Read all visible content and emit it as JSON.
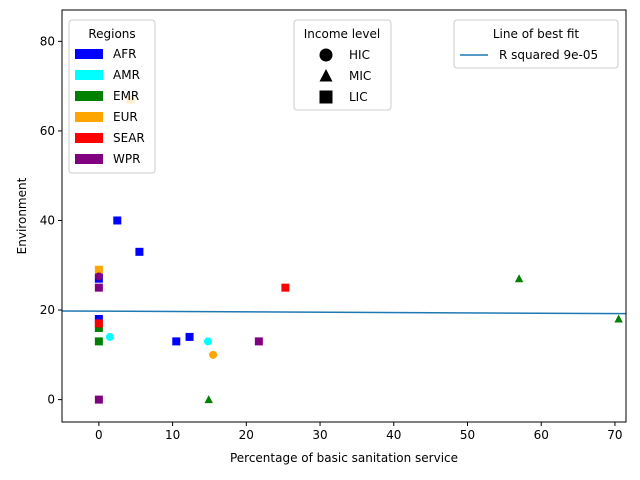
{
  "chart_data": {
    "type": "scatter",
    "title": "",
    "xlabel": "Percentage of basic sanitation service",
    "ylabel": "Environment",
    "xlim": [
      -5,
      71.5
    ],
    "ylim": [
      -5,
      87
    ],
    "xticks": [
      0,
      10,
      20,
      30,
      40,
      50,
      60,
      70
    ],
    "yticks": [
      0,
      20,
      40,
      60,
      80
    ],
    "grid": false,
    "regions_legend": {
      "title": "Regions",
      "placement": "top-left",
      "entries": [
        {
          "label": "AFR",
          "color": "#0000ff"
        },
        {
          "label": "AMR",
          "color": "#00ffff"
        },
        {
          "label": "EMR",
          "color": "#008000"
        },
        {
          "label": "EUR",
          "color": "#ffa500"
        },
        {
          "label": "SEAR",
          "color": "#ff0000"
        },
        {
          "label": "WPR",
          "color": "#800080"
        }
      ]
    },
    "income_legend": {
      "title": "Income level",
      "placement": "top-center",
      "entries": [
        {
          "label": "HIC",
          "marker": "circle"
        },
        {
          "label": "MIC",
          "marker": "triangle"
        },
        {
          "label": "LIC",
          "marker": "square"
        }
      ]
    },
    "fit_legend": {
      "title": "Line of best fit",
      "placement": "top-right",
      "entries": [
        {
          "label": "R squared 9e-05",
          "color": "#1f77b4"
        }
      ]
    },
    "best_fit_line": {
      "x": [
        -5,
        71.5
      ],
      "y": [
        19.8,
        19.2
      ],
      "color": "#1f77b4"
    },
    "points": [
      {
        "x": 0,
        "y": 18,
        "region": "AFR",
        "income": "LIC"
      },
      {
        "x": 0,
        "y": 27,
        "region": "AFR",
        "income": "LIC"
      },
      {
        "x": 0,
        "y": 28,
        "region": "AFR",
        "income": "HIC"
      },
      {
        "x": 2.5,
        "y": 40,
        "region": "AFR",
        "income": "LIC"
      },
      {
        "x": 5.5,
        "y": 33,
        "region": "AFR",
        "income": "LIC"
      },
      {
        "x": 10.5,
        "y": 13,
        "region": "AFR",
        "income": "LIC"
      },
      {
        "x": 12.3,
        "y": 14,
        "region": "AFR",
        "income": "LIC"
      },
      {
        "x": 1.5,
        "y": 14,
        "region": "AMR",
        "income": "HIC"
      },
      {
        "x": 14.8,
        "y": 13,
        "region": "AMR",
        "income": "HIC"
      },
      {
        "x": 0,
        "y": 13,
        "region": "EMR",
        "income": "LIC"
      },
      {
        "x": 0,
        "y": 16,
        "region": "EMR",
        "income": "LIC"
      },
      {
        "x": 14.9,
        "y": 0,
        "region": "EMR",
        "income": "MIC"
      },
      {
        "x": 57,
        "y": 27,
        "region": "EMR",
        "income": "MIC"
      },
      {
        "x": 70.5,
        "y": 18,
        "region": "EMR",
        "income": "MIC"
      },
      {
        "x": 0,
        "y": 29,
        "region": "EUR",
        "income": "LIC"
      },
      {
        "x": 4.3,
        "y": 67,
        "region": "EUR",
        "income": "LIC"
      },
      {
        "x": 15.5,
        "y": 10,
        "region": "EUR",
        "income": "HIC"
      },
      {
        "x": 0,
        "y": 17,
        "region": "SEAR",
        "income": "LIC"
      },
      {
        "x": 25.3,
        "y": 25,
        "region": "SEAR",
        "income": "LIC"
      },
      {
        "x": 0,
        "y": 0,
        "region": "WPR",
        "income": "LIC"
      },
      {
        "x": 0,
        "y": 25,
        "region": "WPR",
        "income": "LIC"
      },
      {
        "x": 0,
        "y": 27.5,
        "region": "WPR",
        "income": "HIC"
      },
      {
        "x": 21.7,
        "y": 13,
        "region": "WPR",
        "income": "LIC"
      }
    ]
  }
}
